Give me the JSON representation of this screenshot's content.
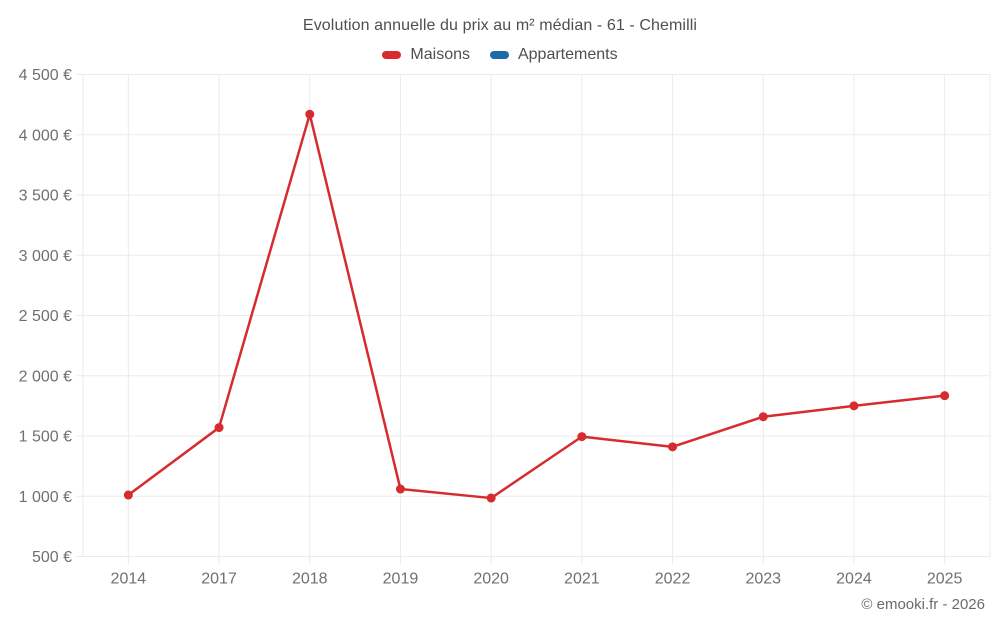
{
  "header": {
    "title": "Evolution annuelle du prix au m² médian - 61 - Chemilli"
  },
  "legend": {
    "items": [
      {
        "label": "Maisons",
        "color": "#d62c2f"
      },
      {
        "label": "Appartements",
        "color": "#1b6ba6"
      }
    ]
  },
  "footer": {
    "copyright": "© emooki.fr - 2026"
  },
  "chart_data": {
    "type": "line",
    "title": "Evolution annuelle du prix au m² médian - 61 - Chemilli",
    "categories": [
      "2014",
      "2017",
      "2018",
      "2019",
      "2020",
      "2021",
      "2022",
      "2023",
      "2024",
      "2025"
    ],
    "series": [
      {
        "name": "Maisons",
        "color": "#d62c2f",
        "values": [
          1010,
          1570,
          4170,
          1060,
          985,
          1495,
          1410,
          1660,
          1750,
          1835
        ]
      },
      {
        "name": "Appartements",
        "color": "#1b6ba6",
        "values": []
      }
    ],
    "xlabel": "",
    "ylabel": "",
    "ylim": [
      500,
      4500
    ],
    "ytick_step": 500,
    "ytick_labels": [
      "500 €",
      "1 000 €",
      "1 500 €",
      "2 000 €",
      "2 500 €",
      "3 000 €",
      "3 500 €",
      "4 000 €",
      "4 500 €"
    ],
    "y_suffix": " €",
    "grid": true,
    "legend_position": "top",
    "styles": {
      "grid_color": "#ebebeb",
      "axis_text_color": "#707070",
      "line_width": 2.5,
      "point_radius": 4.5
    }
  }
}
